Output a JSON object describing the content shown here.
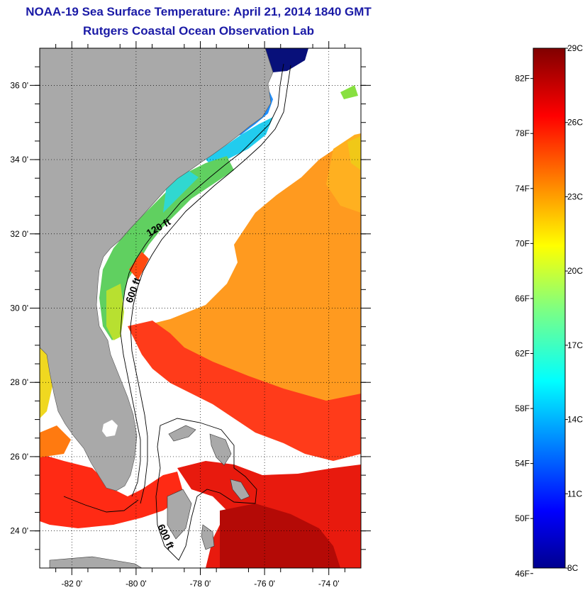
{
  "header": {
    "title": "NOAA-19 Sea Surface Temperature:  April 21, 2014 1840 GMT",
    "subtitle": "Rutgers Coastal Ocean Observation Lab"
  },
  "map": {
    "lon_range": [
      -83,
      -73
    ],
    "lat_range": [
      23,
      37
    ],
    "lat_ticks": [
      {
        "value": 36,
        "label": "36 0'"
      },
      {
        "value": 34,
        "label": "34 0'"
      },
      {
        "value": 32,
        "label": "32 0'"
      },
      {
        "value": 30,
        "label": "30 0'"
      },
      {
        "value": 28,
        "label": "28 0'"
      },
      {
        "value": 26,
        "label": "26 0'"
      },
      {
        "value": 24,
        "label": "24 0'"
      }
    ],
    "lon_ticks": [
      {
        "value": -82,
        "label": "-82 0'"
      },
      {
        "value": -80,
        "label": "-80 0'"
      },
      {
        "value": -78,
        "label": "-78 0'"
      },
      {
        "value": -76,
        "label": "-76 0'"
      },
      {
        "value": -74,
        "label": "-74 0'"
      }
    ],
    "contour_labels": [
      {
        "text": "120 ft"
      },
      {
        "text": "600 ft"
      },
      {
        "text": "600 ft"
      }
    ],
    "colors": {
      "land": "#a9a9a9",
      "no_data": "#ffffff"
    }
  },
  "colorbar": {
    "min_c": 8,
    "max_c": 29,
    "fahrenheit_labels": [
      "82F",
      "78F",
      "74F",
      "70F",
      "66F",
      "62F",
      "58F",
      "54F",
      "50F",
      "46F"
    ],
    "celsius_labels": [
      "29C",
      "26C",
      "23C",
      "20C",
      "17C",
      "14C",
      "11C",
      "8C"
    ],
    "colormap": "jet"
  }
}
